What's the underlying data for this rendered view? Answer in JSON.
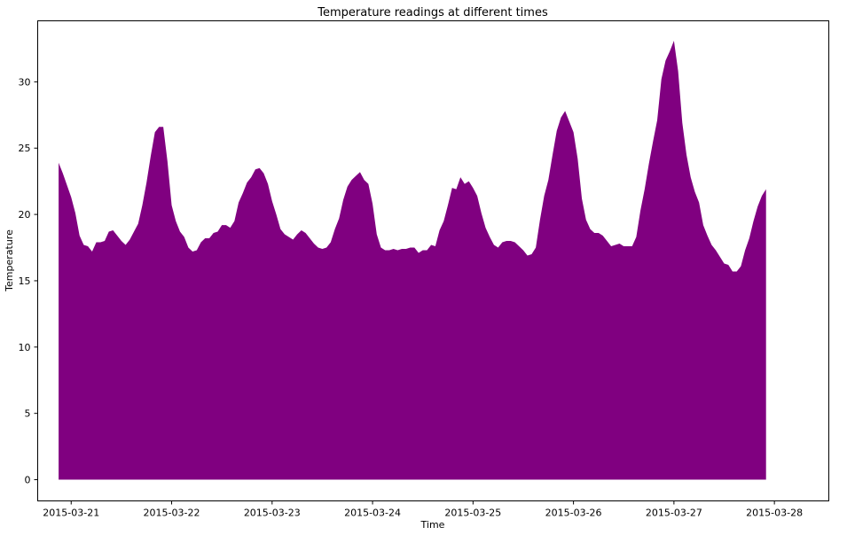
{
  "chart_data": {
    "type": "area",
    "title": "Temperature readings at different times",
    "xlabel": "Time",
    "ylabel": "Temperature",
    "fill_color": "#800080",
    "x_start": "2015-03-20T21:00",
    "x_step_hours": 1,
    "xlim": [
      "2015-03-20T16:00",
      "2015-03-28T13:00"
    ],
    "ylim": [
      -1.6,
      34.6
    ],
    "grid": false,
    "legend": "none",
    "x_ticks": [
      "2015-03-21",
      "2015-03-22",
      "2015-03-23",
      "2015-03-24",
      "2015-03-25",
      "2015-03-26",
      "2015-03-27",
      "2015-03-28"
    ],
    "y_ticks": [
      0,
      5,
      10,
      15,
      20,
      25,
      30
    ],
    "values": [
      23.9,
      23.1,
      22.2,
      21.3,
      20.1,
      18.4,
      17.7,
      17.6,
      17.2,
      17.9,
      17.9,
      18.0,
      18.7,
      18.8,
      18.4,
      18.0,
      17.7,
      18.1,
      18.7,
      19.3,
      20.7,
      22.4,
      24.4,
      26.2,
      26.6,
      26.6,
      24.0,
      20.7,
      19.5,
      18.7,
      18.3,
      17.5,
      17.2,
      17.3,
      17.9,
      18.2,
      18.2,
      18.6,
      18.7,
      19.2,
      19.2,
      19.0,
      19.5,
      20.9,
      21.6,
      22.4,
      22.8,
      23.4,
      23.5,
      23.1,
      22.3,
      21.0,
      20.0,
      18.9,
      18.5,
      18.3,
      18.1,
      18.5,
      18.8,
      18.6,
      18.2,
      17.8,
      17.5,
      17.4,
      17.5,
      17.9,
      18.9,
      19.7,
      21.1,
      22.1,
      22.6,
      22.9,
      23.2,
      22.6,
      22.3,
      20.8,
      18.5,
      17.5,
      17.3,
      17.3,
      17.4,
      17.3,
      17.4,
      17.4,
      17.5,
      17.5,
      17.1,
      17.3,
      17.3,
      17.7,
      17.6,
      18.8,
      19.5,
      20.7,
      22.0,
      21.9,
      22.8,
      22.3,
      22.5,
      22.0,
      21.4,
      20.1,
      19.0,
      18.3,
      17.7,
      17.5,
      17.9,
      18.0,
      18.0,
      17.9,
      17.6,
      17.3,
      16.9,
      17.0,
      17.5,
      19.6,
      21.4,
      22.6,
      24.5,
      26.3,
      27.3,
      27.8,
      27.0,
      26.2,
      24.2,
      21.2,
      19.6,
      18.9,
      18.6,
      18.6,
      18.4,
      18.0,
      17.6,
      17.7,
      17.8,
      17.6,
      17.6,
      17.6,
      18.3,
      20.3,
      21.9,
      23.8,
      25.5,
      27.1,
      30.2,
      31.6,
      32.3,
      33.1,
      30.8,
      26.9,
      24.5,
      22.8,
      21.7,
      20.9,
      19.2,
      18.4,
      17.7,
      17.3,
      16.8,
      16.3,
      16.2,
      15.7,
      15.7,
      16.1,
      17.3,
      18.2,
      19.5,
      20.6,
      21.4,
      21.9
    ]
  }
}
